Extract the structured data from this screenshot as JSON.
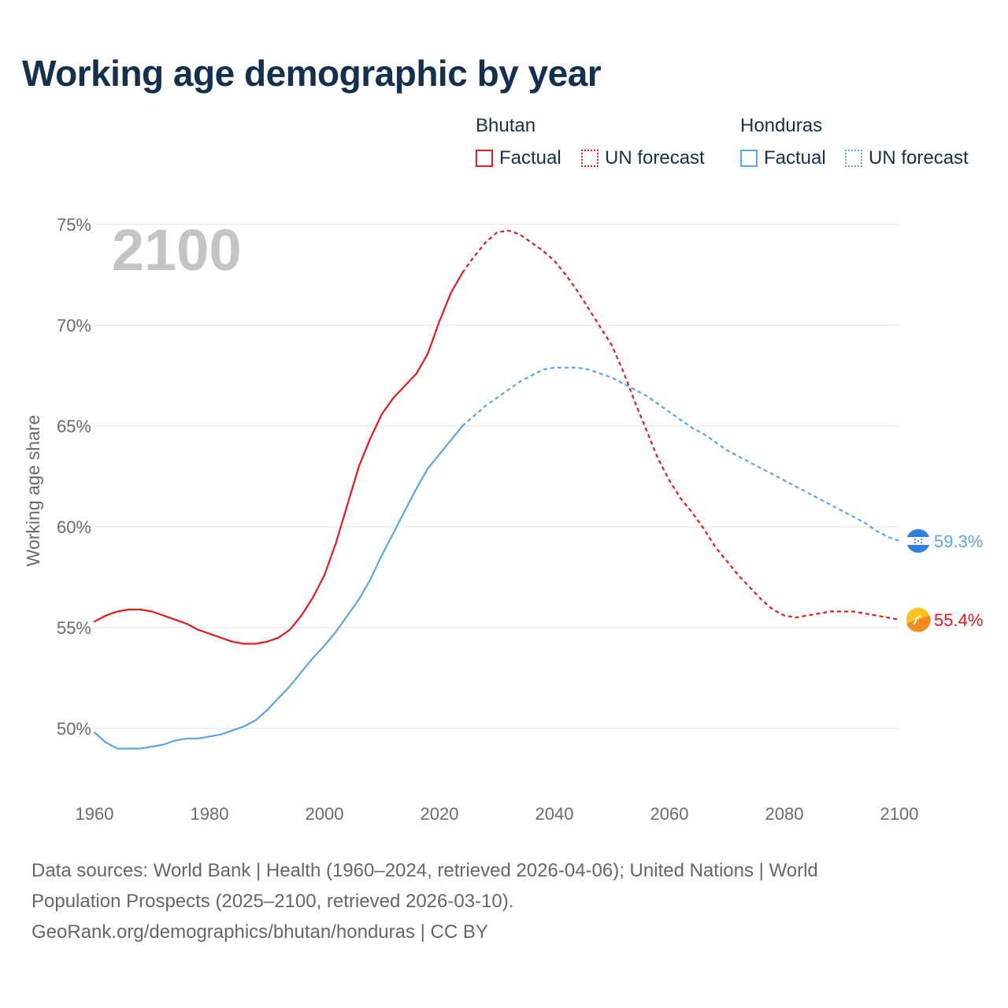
{
  "title": "Working age demographic by year",
  "legend": {
    "bhutan": {
      "title": "Bhutan",
      "factual": "Factual",
      "forecast": "UN forecast",
      "color": "#e8191c"
    },
    "honduras": {
      "title": "Honduras",
      "factual": "Factual",
      "forecast": "UN forecast",
      "color": "#5aa5e6"
    }
  },
  "chart_data": {
    "type": "line",
    "title": "Working age demographic by year",
    "ylabel": "Working age share",
    "xlabel": "",
    "year_display": "2100",
    "xlim": [
      1960,
      2100
    ],
    "ylim": [
      47,
      75.5
    ],
    "x_ticks": [
      "1960",
      "1980",
      "2000",
      "2020",
      "2040",
      "2060",
      "2080",
      "2100"
    ],
    "y_ticks": [
      {
        "value": 50,
        "label": "50%"
      },
      {
        "value": 55,
        "label": "55%"
      },
      {
        "value": 60,
        "label": "60%"
      },
      {
        "value": 65,
        "label": "65%"
      },
      {
        "value": 70,
        "label": "70%"
      },
      {
        "value": 75,
        "label": "75%"
      }
    ],
    "forecast_start": 2024,
    "series": [
      {
        "name": "Bhutan",
        "color": "#e8191c",
        "end_label": "55.4%",
        "x": [
          1960,
          1962,
          1964,
          1966,
          1968,
          1970,
          1972,
          1974,
          1976,
          1978,
          1980,
          1982,
          1984,
          1986,
          1988,
          1990,
          1992,
          1994,
          1996,
          1998,
          2000,
          2002,
          2004,
          2006,
          2008,
          2010,
          2012,
          2014,
          2016,
          2018,
          2020,
          2022,
          2024,
          2026,
          2028,
          2030,
          2032,
          2034,
          2036,
          2038,
          2040,
          2042,
          2044,
          2046,
          2048,
          2050,
          2052,
          2054,
          2056,
          2058,
          2060,
          2062,
          2064,
          2066,
          2068,
          2070,
          2072,
          2074,
          2076,
          2078,
          2080,
          2082,
          2084,
          2086,
          2088,
          2090,
          2092,
          2094,
          2096,
          2098,
          2100
        ],
        "values": [
          55.3,
          55.6,
          55.8,
          55.9,
          55.9,
          55.8,
          55.6,
          55.4,
          55.2,
          54.9,
          54.7,
          54.5,
          54.3,
          54.2,
          54.2,
          54.3,
          54.5,
          54.9,
          55.6,
          56.5,
          57.6,
          59.2,
          61.1,
          63.0,
          64.4,
          65.6,
          66.4,
          67.0,
          67.6,
          68.6,
          70.2,
          71.6,
          72.6,
          73.4,
          74.1,
          74.6,
          74.7,
          74.5,
          74.1,
          73.7,
          73.2,
          72.5,
          71.7,
          70.8,
          69.9,
          69.0,
          67.7,
          66.2,
          64.8,
          63.4,
          62.3,
          61.4,
          60.7,
          59.9,
          59.0,
          58.3,
          57.6,
          57.0,
          56.4,
          55.9,
          55.6,
          55.5,
          55.6,
          55.7,
          55.8,
          55.8,
          55.8,
          55.7,
          55.6,
          55.5,
          55.4
        ]
      },
      {
        "name": "Honduras",
        "color": "#5aa5e6",
        "end_label": "59.3%",
        "x": [
          1960,
          1962,
          1964,
          1966,
          1968,
          1970,
          1972,
          1974,
          1976,
          1978,
          1980,
          1982,
          1984,
          1986,
          1988,
          1990,
          1992,
          1994,
          1996,
          1998,
          2000,
          2002,
          2004,
          2006,
          2008,
          2010,
          2012,
          2014,
          2016,
          2018,
          2020,
          2022,
          2024,
          2026,
          2028,
          2030,
          2032,
          2034,
          2036,
          2038,
          2040,
          2042,
          2044,
          2046,
          2048,
          2050,
          2052,
          2054,
          2056,
          2058,
          2060,
          2062,
          2064,
          2066,
          2068,
          2070,
          2072,
          2074,
          2076,
          2078,
          2080,
          2082,
          2084,
          2086,
          2088,
          2090,
          2092,
          2094,
          2096,
          2098,
          2100
        ],
        "values": [
          49.8,
          49.3,
          49.0,
          49.0,
          49.0,
          49.1,
          49.2,
          49.4,
          49.5,
          49.5,
          49.6,
          49.7,
          49.9,
          50.1,
          50.4,
          50.9,
          51.5,
          52.1,
          52.8,
          53.5,
          54.1,
          54.8,
          55.6,
          56.4,
          57.4,
          58.6,
          59.7,
          60.8,
          61.9,
          62.9,
          63.6,
          64.3,
          65.0,
          65.5,
          66.0,
          66.4,
          66.8,
          67.2,
          67.5,
          67.8,
          67.9,
          67.9,
          67.9,
          67.8,
          67.6,
          67.4,
          67.1,
          66.8,
          66.5,
          66.1,
          65.7,
          65.3,
          64.9,
          64.6,
          64.2,
          63.8,
          63.5,
          63.2,
          62.9,
          62.6,
          62.3,
          62.0,
          61.7,
          61.4,
          61.1,
          60.8,
          60.5,
          60.2,
          59.8,
          59.5,
          59.3
        ]
      }
    ]
  },
  "footer": {
    "line1": "Data sources: World Bank | Health (1960–2024, retrieved 2026-04-06); United Nations | World",
    "line2": "Population Prospects (2025–2100, retrieved 2026-03-10).",
    "line3": "GeoRank.org/demographics/bhutan/honduras | CC BY"
  }
}
